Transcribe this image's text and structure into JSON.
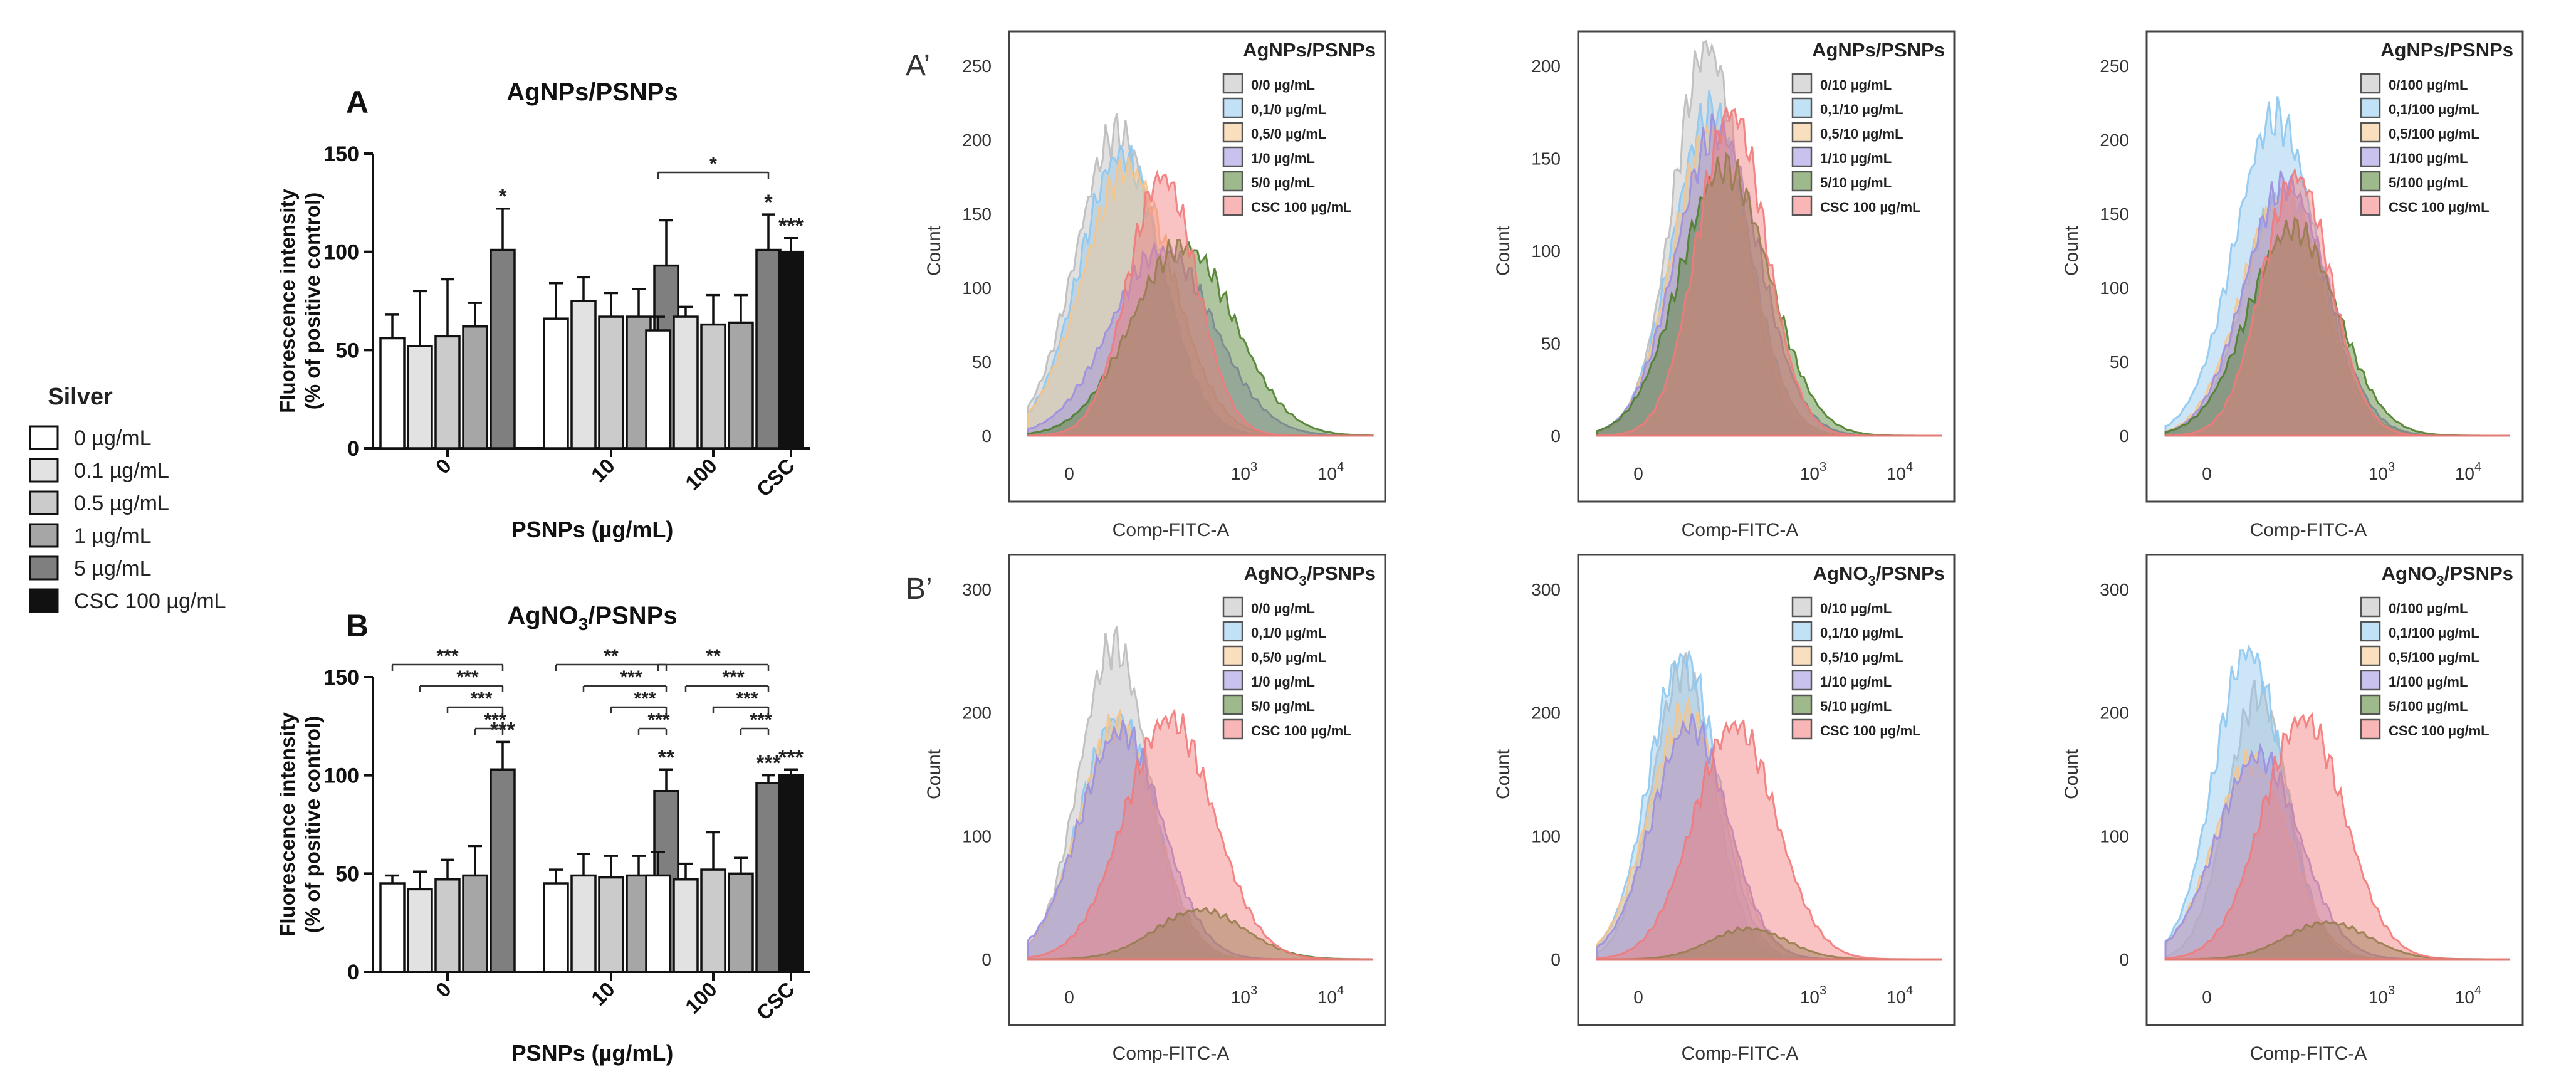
{
  "legend": {
    "title": "Silver",
    "items": [
      {
        "label": "0 µg/mL",
        "color": "#ffffff"
      },
      {
        "label": "0.1 µg/mL",
        "color": "#e2e2e2"
      },
      {
        "label": "0.5 µg/mL",
        "color": "#cbcbcb"
      },
      {
        "label": "1 µg/mL",
        "color": "#a6a6a6"
      },
      {
        "label": "5 µg/mL",
        "color": "#7f7f7f"
      },
      {
        "label": "CSC 100 µg/mL",
        "color": "#111111"
      }
    ]
  },
  "histogram_labels": {
    "xlabel": "Comp-FITC-A",
    "ylabel": "Count",
    "xticks": [
      "0",
      "10",
      "10"
    ],
    "xtick_exponents": [
      "",
      "3",
      "4"
    ]
  },
  "colors": {
    "gray": "#bdbdbd",
    "blue": "#8ec8f0",
    "orange": "#f6c48a",
    "purple": "#9c8fe0",
    "green": "#4e7f2c",
    "red": "#f27a7a"
  },
  "chart_data": [
    {
      "type": "bar",
      "panel_letter": "A",
      "title": "AgNPs/PSNPs",
      "ylabel_line1": "Fluorescence intensity",
      "ylabel_line2": "(% of positive control)",
      "xlabel": "PSNPs (µg/mL)",
      "ylim": [
        0,
        150
      ],
      "yticks": [
        "0",
        "50",
        "100",
        "150"
      ],
      "groups": [
        {
          "label": "0",
          "values": [
            56,
            52,
            57,
            62,
            101
          ],
          "errors": [
            12,
            28,
            29,
            12,
            21
          ],
          "stars": [
            "",
            "",
            "",
            "",
            "*"
          ]
        },
        {
          "label": "10",
          "values": [
            66,
            75,
            67,
            67,
            93
          ],
          "errors": [
            18,
            12,
            12,
            14,
            23
          ],
          "stars": [
            "",
            "",
            "",
            "",
            ""
          ]
        },
        {
          "label": "100",
          "values": [
            60,
            67,
            63,
            64,
            101
          ],
          "errors": [
            7,
            5,
            15,
            14,
            18
          ],
          "stars": [
            "",
            "",
            "",
            "",
            "*"
          ]
        }
      ],
      "csc": {
        "label": "CSC",
        "value": 100,
        "error": 7,
        "stars": "***"
      },
      "brackets": [
        {
          "group": 2,
          "from": 0,
          "to": 4,
          "stars": "*"
        }
      ]
    },
    {
      "type": "bar",
      "panel_letter": "B",
      "title": "AgNO3/PSNPs",
      "title_base": "AgNO",
      "title_sub": "3",
      "title_tail": "/PSNPs",
      "ylabel_line1": "Fluorescence intensity",
      "ylabel_line2": "(% of positive control)",
      "xlabel": "PSNPs (µg/mL)",
      "ylim": [
        0,
        150
      ],
      "yticks": [
        "0",
        "50",
        "100",
        "150"
      ],
      "groups": [
        {
          "label": "0",
          "values": [
            45,
            42,
            47,
            49,
            103
          ],
          "errors": [
            4,
            9,
            10,
            15,
            14
          ],
          "stars": [
            "",
            "",
            "",
            "",
            "***"
          ]
        },
        {
          "label": "10",
          "values": [
            45,
            49,
            48,
            49,
            92
          ],
          "errors": [
            7,
            11,
            11,
            10,
            11
          ],
          "stars": [
            "",
            "",
            "",
            "",
            "**"
          ]
        },
        {
          "label": "100",
          "values": [
            49,
            47,
            52,
            50,
            96
          ],
          "errors": [
            12,
            8,
            19,
            8,
            4
          ],
          "stars": [
            "",
            "",
            "",
            "",
            "***"
          ]
        }
      ],
      "csc": {
        "label": "CSC",
        "value": 100,
        "error": 3,
        "stars": "***"
      },
      "brackets": [
        {
          "group": 0,
          "from": 0,
          "to": 4,
          "stars": "***"
        },
        {
          "group": 0,
          "from": 1,
          "to": 4,
          "stars": "***"
        },
        {
          "group": 0,
          "from": 2,
          "to": 4,
          "stars": "***"
        },
        {
          "group": 0,
          "from": 3,
          "to": 4,
          "stars": "***"
        },
        {
          "group": 1,
          "from": 0,
          "to": 4,
          "stars": "**"
        },
        {
          "group": 1,
          "from": 1,
          "to": 4,
          "stars": "***"
        },
        {
          "group": 1,
          "from": 2,
          "to": 4,
          "stars": "***"
        },
        {
          "group": 1,
          "from": 3,
          "to": 4,
          "stars": "***"
        },
        {
          "group": 2,
          "from": 0,
          "to": 4,
          "stars": "**"
        },
        {
          "group": 2,
          "from": 1,
          "to": 4,
          "stars": "***"
        },
        {
          "group": 2,
          "from": 2,
          "to": 4,
          "stars": "***"
        },
        {
          "group": 2,
          "from": 3,
          "to": 4,
          "stars": "***"
        }
      ]
    },
    {
      "type": "area",
      "panel_label": "A’",
      "title": "AgNPs/PSNPs",
      "ylim": [
        0,
        250
      ],
      "yticks": [
        "0",
        "50",
        "100",
        "150",
        "200",
        "250"
      ],
      "legend": [
        "0/0 µg/mL",
        "0,1/0 µg/mL",
        "0,5/0 µg/mL",
        "1/0 µg/mL",
        "5/0 µg/mL",
        "CSC 100 µg/mL"
      ],
      "series": [
        {
          "name": "0/0 µg/mL",
          "color": "gray",
          "center": 0.26,
          "width": 0.12,
          "peak": 205
        },
        {
          "name": "0,1/0 µg/mL",
          "color": "blue",
          "center": 0.27,
          "width": 0.12,
          "peak": 190
        },
        {
          "name": "0,5/0 µg/mL",
          "color": "orange",
          "center": 0.29,
          "width": 0.13,
          "peak": 180
        },
        {
          "name": "1/0 µg/mL",
          "color": "purple",
          "center": 0.39,
          "width": 0.15,
          "peak": 125
        },
        {
          "name": "5/0 µg/mL",
          "color": "green",
          "center": 0.45,
          "width": 0.15,
          "peak": 128
        },
        {
          "name": "CSC 100 µg/mL",
          "color": "red",
          "center": 0.39,
          "width": 0.1,
          "peak": 175
        }
      ]
    },
    {
      "type": "area",
      "panel_label": "",
      "title": "AgNPs/PSNPs",
      "ylim": [
        0,
        200
      ],
      "yticks": [
        "0",
        "50",
        "100",
        "150",
        "200"
      ],
      "legend": [
        "0/10 µg/mL",
        "0,1/10 µg/mL",
        "0,5/10 µg/mL",
        "1/10 µg/mL",
        "5/10 µg/mL",
        "CSC 100 µg/mL"
      ],
      "series": [
        {
          "name": "0/10 µg/mL",
          "color": "gray",
          "center": 0.32,
          "width": 0.1,
          "peak": 210
        },
        {
          "name": "0,1/10 µg/mL",
          "color": "blue",
          "center": 0.33,
          "width": 0.11,
          "peak": 175
        },
        {
          "name": "0,5/10 µg/mL",
          "color": "orange",
          "center": 0.33,
          "width": 0.11,
          "peak": 165
        },
        {
          "name": "1/10 µg/mL",
          "color": "purple",
          "center": 0.35,
          "width": 0.12,
          "peak": 165
        },
        {
          "name": "5/10 µg/mL",
          "color": "green",
          "center": 0.37,
          "width": 0.13,
          "peak": 145
        },
        {
          "name": "CSC 100 µg/mL",
          "color": "red",
          "center": 0.39,
          "width": 0.1,
          "peak": 175
        }
      ]
    },
    {
      "type": "area",
      "panel_label": "",
      "title": "AgNPs/PSNPs",
      "ylim": [
        0,
        250
      ],
      "yticks": [
        "0",
        "50",
        "100",
        "150",
        "200",
        "250"
      ],
      "legend": [
        "0/100 µg/mL",
        "0,1/100 µg/mL",
        "0,5/100 µg/mL",
        "1/100 µg/mL",
        "5/100 µg/mL",
        "CSC 100 µg/mL"
      ],
      "series": [
        {
          "name": "0/100 µg/mL",
          "color": "gray",
          "center": 0.34,
          "width": 0.11,
          "peak": 165
        },
        {
          "name": "0,1/100 µg/mL",
          "color": "blue",
          "center": 0.32,
          "width": 0.12,
          "peak": 215
        },
        {
          "name": "0,5/100 µg/mL",
          "color": "orange",
          "center": 0.34,
          "width": 0.12,
          "peak": 160
        },
        {
          "name": "1/100 µg/mL",
          "color": "purple",
          "center": 0.35,
          "width": 0.12,
          "peak": 170
        },
        {
          "name": "5/100 µg/mL",
          "color": "green",
          "center": 0.37,
          "width": 0.13,
          "peak": 140
        },
        {
          "name": "CSC 100 µg/mL",
          "color": "red",
          "center": 0.38,
          "width": 0.1,
          "peak": 175
        }
      ]
    },
    {
      "type": "area",
      "panel_label": "B’",
      "title": "AgNO3/PSNPs",
      "ylim": [
        0,
        300
      ],
      "yticks": [
        "0",
        "100",
        "200",
        "300"
      ],
      "legend": [
        "0/0 µg/mL",
        "0,1/0 µg/mL",
        "0,5/0 µg/mL",
        "1/0 µg/mL",
        "5/0 µg/mL",
        "CSC 100 µg/mL"
      ],
      "series": [
        {
          "name": "0/0 µg/mL",
          "color": "gray",
          "center": 0.25,
          "width": 0.1,
          "peak": 255
        },
        {
          "name": "0,1/0 µg/mL",
          "color": "blue",
          "center": 0.26,
          "width": 0.11,
          "peak": 195
        },
        {
          "name": "0,5/0 µg/mL",
          "color": "orange",
          "center": 0.26,
          "width": 0.11,
          "peak": 190
        },
        {
          "name": "1/0 µg/mL",
          "color": "purple",
          "center": 0.27,
          "width": 0.12,
          "peak": 185
        },
        {
          "name": "5/0 µg/mL",
          "color": "green",
          "center": 0.5,
          "width": 0.13,
          "peak": 40
        },
        {
          "name": "CSC 100 µg/mL",
          "color": "red",
          "center": 0.41,
          "width": 0.13,
          "peak": 195
        }
      ]
    },
    {
      "type": "area",
      "panel_label": "",
      "title": "AgNO3/PSNPs",
      "ylim": [
        0,
        300
      ],
      "yticks": [
        "0",
        "100",
        "200",
        "300"
      ],
      "legend": [
        "0/10 µg/mL",
        "0,1/10 µg/mL",
        "0,5/10 µg/mL",
        "1/10 µg/mL",
        "5/10 µg/mL",
        "CSC 100 µg/mL"
      ],
      "series": [
        {
          "name": "0/10 µg/mL",
          "color": "gray",
          "center": 0.25,
          "width": 0.09,
          "peak": 235
        },
        {
          "name": "0,1/10 µg/mL",
          "color": "blue",
          "center": 0.25,
          "width": 0.1,
          "peak": 245
        },
        {
          "name": "0,5/10 µg/mL",
          "color": "orange",
          "center": 0.26,
          "width": 0.11,
          "peak": 200
        },
        {
          "name": "1/10 µg/mL",
          "color": "purple",
          "center": 0.27,
          "width": 0.11,
          "peak": 190
        },
        {
          "name": "5/10 µg/mL",
          "color": "green",
          "center": 0.44,
          "width": 0.11,
          "peak": 25
        },
        {
          "name": "CSC 100 µg/mL",
          "color": "red",
          "center": 0.4,
          "width": 0.12,
          "peak": 190
        }
      ]
    },
    {
      "type": "area",
      "panel_label": "",
      "title": "AgNO3/PSNPs",
      "ylim": [
        0,
        300
      ],
      "yticks": [
        "0",
        "100",
        "200",
        "300"
      ],
      "legend": [
        "0/100 µg/mL",
        "0,1/100 µg/mL",
        "0,5/100 µg/mL",
        "1/100 µg/mL",
        "5/100 µg/mL",
        "CSC 100 µg/mL"
      ],
      "series": [
        {
          "name": "0/100 µg/mL",
          "color": "gray",
          "center": 0.27,
          "width": 0.09,
          "peak": 215
        },
        {
          "name": "0,1/100 µg/mL",
          "color": "blue",
          "center": 0.24,
          "width": 0.1,
          "peak": 250
        },
        {
          "name": "0,5/100 µg/mL",
          "color": "orange",
          "center": 0.25,
          "width": 0.11,
          "peak": 160
        },
        {
          "name": "1/100 µg/mL",
          "color": "purple",
          "center": 0.27,
          "width": 0.12,
          "peak": 165
        },
        {
          "name": "5/100 µg/mL",
          "color": "green",
          "center": 0.47,
          "width": 0.12,
          "peak": 30
        },
        {
          "name": "CSC 100 µg/mL",
          "color": "red",
          "center": 0.4,
          "width": 0.12,
          "peak": 195
        }
      ]
    }
  ]
}
